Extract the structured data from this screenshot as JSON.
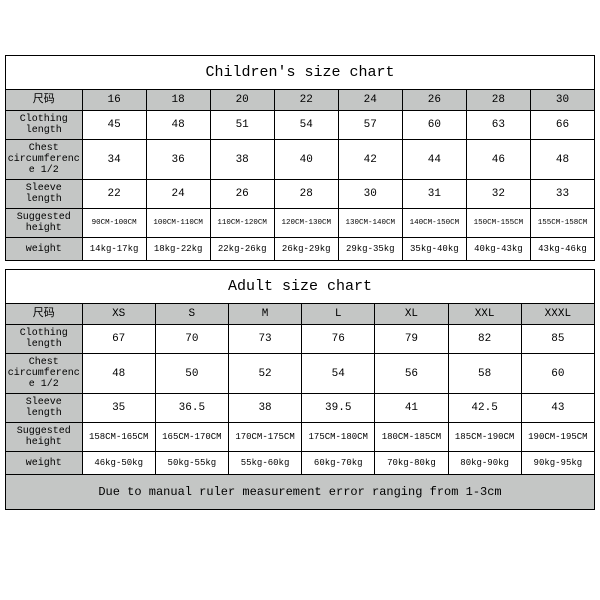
{
  "colors": {
    "header_bg": "#c4c6c5",
    "cell_bg": "#ffffff",
    "border": "#000000",
    "text": "#000000"
  },
  "font": {
    "family": "Courier New, monospace"
  },
  "children": {
    "title": "Children's size chart",
    "label_col_header": "尺码",
    "size_headers": [
      "16",
      "18",
      "20",
      "22",
      "24",
      "26",
      "28",
      "30"
    ],
    "rows": [
      {
        "label": "Clothing length",
        "values": [
          "45",
          "48",
          "51",
          "54",
          "57",
          "60",
          "63",
          "66"
        ]
      },
      {
        "label": "Chest circumference 1/2",
        "values": [
          "34",
          "36",
          "38",
          "40",
          "42",
          "44",
          "46",
          "48"
        ]
      },
      {
        "label": "Sleeve length",
        "values": [
          "22",
          "24",
          "26",
          "28",
          "30",
          "31",
          "32",
          "33"
        ]
      },
      {
        "label": "Suggested height",
        "values": [
          "90CM-100CM",
          "100CM-110CM",
          "110CM-120CM",
          "120CM-130CM",
          "130CM-140CM",
          "140CM-150CM",
          "150CM-155CM",
          "155CM-158CM"
        ]
      },
      {
        "label": "weight",
        "values": [
          "14kg-17kg",
          "18kg-22kg",
          "22kg-26kg",
          "26kg-29kg",
          "29kg-35kg",
          "35kg-40kg",
          "40kg-43kg",
          "43kg-46kg"
        ]
      }
    ]
  },
  "adult": {
    "title": "Adult size chart",
    "label_col_header": "尺码",
    "size_headers": [
      "XS",
      "S",
      "M",
      "L",
      "XL",
      "XXL",
      "XXXL"
    ],
    "rows": [
      {
        "label": "Clothing length",
        "values": [
          "67",
          "70",
          "73",
          "76",
          "79",
          "82",
          "85"
        ]
      },
      {
        "label": "Chest circumference 1/2",
        "values": [
          "48",
          "50",
          "52",
          "54",
          "56",
          "58",
          "60"
        ]
      },
      {
        "label": "Sleeve length",
        "values": [
          "35",
          "36.5",
          "38",
          "39.5",
          "41",
          "42.5",
          "43"
        ]
      },
      {
        "label": "Suggested height",
        "values": [
          "158CM-165CM",
          "165CM-170CM",
          "170CM-175CM",
          "175CM-180CM",
          "180CM-185CM",
          "185CM-190CM",
          "190CM-195CM"
        ]
      },
      {
        "label": "weight",
        "values": [
          "46kg-50kg",
          "50kg-55kg",
          "55kg-60kg",
          "60kg-70kg",
          "70kg-80kg",
          "80kg-90kg",
          "90kg-95kg"
        ]
      }
    ]
  },
  "note": "Due to manual ruler measurement error ranging from 1-3cm"
}
